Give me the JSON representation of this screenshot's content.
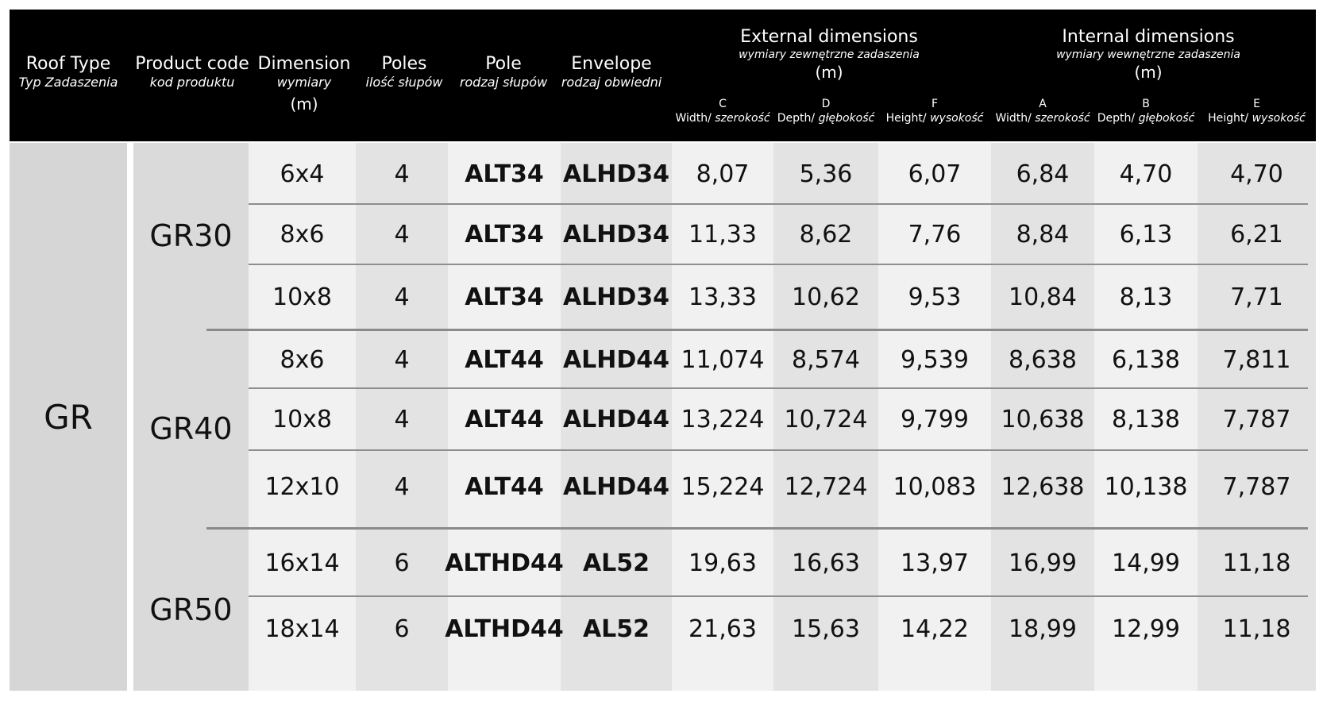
{
  "header": {
    "roof_type": "Roof Type",
    "roof_type_pl": "Typ Zadaszenia",
    "product_code": "Product code",
    "product_code_pl": "kod produktu",
    "dimension": "Dimension",
    "dimension_pl": "wymiary",
    "dimension_unit": "(m)",
    "poles": "Poles",
    "poles_pl": "ilość słupów",
    "pole": "Pole",
    "pole_pl": "rodzaj słupów",
    "envelope": "Envelope",
    "envelope_pl": "rodzaj obwiedni",
    "external": "External dimensions",
    "external_pl": "wymiary zewnętrzne zadaszenia",
    "external_unit": "(m)",
    "internal": "Internal dimensions",
    "internal_pl": "wymiary wewnętrzne zadaszenia",
    "internal_unit": "(m)",
    "cols": [
      {
        "letter": "C",
        "label": "Width/",
        "label_pl": "szerokość"
      },
      {
        "letter": "D",
        "label": "Depth/",
        "label_pl": "głębokość"
      },
      {
        "letter": "F",
        "label": "Height/",
        "label_pl": "wysokość"
      },
      {
        "letter": "A",
        "label": "Width/",
        "label_pl": "szerokość"
      },
      {
        "letter": "B",
        "label": "Depth/",
        "label_pl": "głębokość"
      },
      {
        "letter": "E",
        "label": "Height/",
        "label_pl": "wysokość"
      }
    ]
  },
  "roof_type": "GR",
  "groups": [
    {
      "code": "GR30",
      "rows": [
        [
          "6x4",
          "4",
          "ALT34",
          "ALHD34",
          "8,07",
          "5,36",
          "6,07",
          "6,84",
          "4,70",
          "4,70"
        ],
        [
          "8x6",
          "4",
          "ALT34",
          "ALHD34",
          "11,33",
          "8,62",
          "7,76",
          "8,84",
          "6,13",
          "6,21"
        ],
        [
          "10x8",
          "4",
          "ALT34",
          "ALHD34",
          "13,33",
          "10,62",
          "9,53",
          "10,84",
          "8,13",
          "7,71"
        ]
      ]
    },
    {
      "code": "GR40",
      "rows": [
        [
          "8x6",
          "4",
          "ALT44",
          "ALHD44",
          "11,074",
          "8,574",
          "9,539",
          "8,638",
          "6,138",
          "7,811"
        ],
        [
          "10x8",
          "4",
          "ALT44",
          "ALHD44",
          "13,224",
          "10,724",
          "9,799",
          "10,638",
          "8,138",
          "7,787"
        ],
        [
          "12x10",
          "4",
          "ALT44",
          "ALHD44",
          "15,224",
          "12,724",
          "10,083",
          "12,638",
          "10,138",
          "7,787"
        ]
      ]
    },
    {
      "code": "GR50",
      "rows": [
        [
          "16x14",
          "6",
          "ALTHD44",
          "AL52",
          "19,63",
          "16,63",
          "13,97",
          "16,99",
          "14,99",
          "11,18"
        ],
        [
          "18x14",
          "6",
          "ALTHD44",
          "AL52",
          "21,63",
          "15,63",
          "14,22",
          "18,99",
          "12,99",
          "11,18"
        ]
      ]
    }
  ]
}
